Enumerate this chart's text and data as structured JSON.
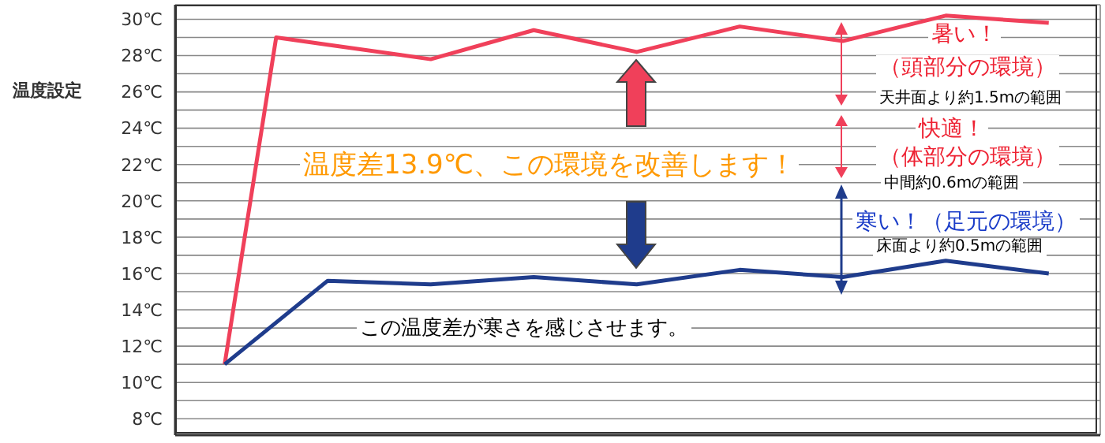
{
  "chart_data": {
    "type": "line",
    "ylabel": "温度設定",
    "categories": [
      null,
      null,
      null,
      null,
      null,
      null,
      null,
      null,
      null,
      null,
      null,
      null,
      null,
      null,
      null,
      null,
      null
    ],
    "series": [
      {
        "color": "#f0405a",
        "values": [
          11.0,
          29.0,
          28.6,
          null,
          27.8,
          null,
          29.4,
          null,
          28.2,
          null,
          29.6,
          null,
          28.8,
          null,
          30.2,
          null,
          29.8
        ]
      },
      {
        "color": "#1f3c8c",
        "values": [
          11.0,
          null,
          15.6,
          null,
          15.4,
          null,
          15.8,
          null,
          15.4,
          null,
          16.2,
          null,
          15.8,
          null,
          16.7,
          null,
          16.0
        ]
      }
    ],
    "ylim": [
      7.1,
      30.8
    ],
    "yticks": [
      {
        "value": 8,
        "label": "8℃"
      },
      {
        "value": 9,
        "label": null
      },
      {
        "value": 10,
        "label": "10℃"
      },
      {
        "value": 11,
        "label": null
      },
      {
        "value": 12,
        "label": "12℃"
      },
      {
        "value": 13,
        "label": null
      },
      {
        "value": 14,
        "label": "14℃"
      },
      {
        "value": 15,
        "label": null
      },
      {
        "value": 16,
        "label": "16℃"
      },
      {
        "value": 17,
        "label": null
      },
      {
        "value": 18,
        "label": "18℃"
      },
      {
        "value": 19,
        "label": null
      },
      {
        "value": 20,
        "label": "20℃"
      },
      {
        "value": 21,
        "label": null
      },
      {
        "value": 22,
        "label": "22℃"
      },
      {
        "value": 23,
        "label": null
      },
      {
        "value": 24,
        "label": "24℃"
      },
      {
        "value": 25,
        "label": null
      },
      {
        "value": 26,
        "label": "26℃"
      },
      {
        "value": 27,
        "label": null
      },
      {
        "value": 28,
        "label": "28℃"
      },
      {
        "value": 29,
        "label": null
      },
      {
        "value": 30,
        "label": "30℃"
      }
    ],
    "grid": true,
    "legend": false,
    "marker": "none",
    "line_style": "solid",
    "tick_labels": "y",
    "annotations": [
      "温度差13.9℃、この環境を改善します！",
      "この温度差が寒さを感じさせます。",
      "暑い！",
      "（頭部分の環境）",
      "天井面より約1.5mの範囲",
      "快適！",
      "（体部分の環境）",
      "中間約0.6mの範囲",
      "寒い！（足元の環境）",
      "床面より約0.5mの範囲"
    ]
  }
}
